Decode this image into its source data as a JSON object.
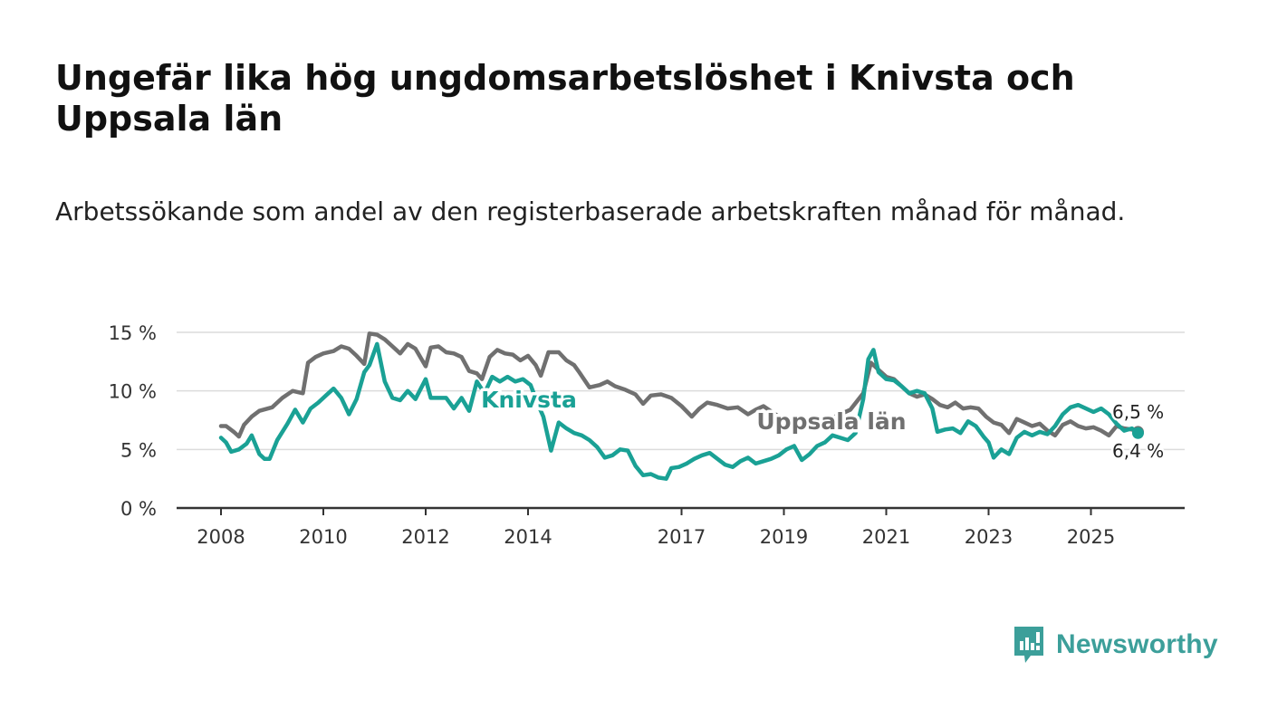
{
  "header": {
    "title": "Ungefär lika hög ungdomsarbetslöshet i Knivsta och Uppsala län",
    "subtitle": "Arbetssökande som andel av den registerbaserade arbetskraften månad för månad."
  },
  "brand": {
    "name": "Newsworthy",
    "icon": "newsworthy-logo-icon",
    "color": "#3c9f9a"
  },
  "chart_data": {
    "type": "line",
    "title": "Ungefär lika hög ungdomsarbetslöshet i Knivsta och Uppsala län",
    "subtitle": "Arbetssökande som andel av den registerbaserade arbetskraften månad för månad.",
    "xlabel": "",
    "ylabel": "",
    "xlim": [
      2008,
      2026.5
    ],
    "ylim": [
      0,
      15
    ],
    "grid": true,
    "x_ticks": [
      2008,
      2010,
      2012,
      2014,
      2017,
      2019,
      2021,
      2023,
      2025
    ],
    "y_ticks": [
      {
        "value": 0,
        "label": "0 %"
      },
      {
        "value": 5,
        "label": "5 %"
      },
      {
        "value": 10,
        "label": "10 %"
      },
      {
        "value": 15,
        "label": "15 %"
      }
    ],
    "series": [
      {
        "name": "Uppsala län",
        "color": "#707070",
        "end_label": "6,5 %",
        "points": [
          [
            2008.0,
            7.0
          ],
          [
            2008.1,
            7.0
          ],
          [
            2008.25,
            6.5
          ],
          [
            2008.35,
            6.1
          ],
          [
            2008.45,
            7.1
          ],
          [
            2008.6,
            7.8
          ],
          [
            2008.75,
            8.3
          ],
          [
            2009.0,
            8.6
          ],
          [
            2009.2,
            9.4
          ],
          [
            2009.4,
            10.0
          ],
          [
            2009.6,
            9.8
          ],
          [
            2009.7,
            12.4
          ],
          [
            2009.85,
            12.9
          ],
          [
            2010.0,
            13.2
          ],
          [
            2010.2,
            13.4
          ],
          [
            2010.35,
            13.8
          ],
          [
            2010.5,
            13.6
          ],
          [
            2010.65,
            13.0
          ],
          [
            2010.8,
            12.3
          ],
          [
            2010.9,
            14.9
          ],
          [
            2011.05,
            14.8
          ],
          [
            2011.2,
            14.4
          ],
          [
            2011.35,
            13.8
          ],
          [
            2011.5,
            13.2
          ],
          [
            2011.65,
            14.0
          ],
          [
            2011.8,
            13.6
          ],
          [
            2012.0,
            12.1
          ],
          [
            2012.1,
            13.7
          ],
          [
            2012.25,
            13.8
          ],
          [
            2012.4,
            13.3
          ],
          [
            2012.55,
            13.2
          ],
          [
            2012.7,
            12.9
          ],
          [
            2012.85,
            11.7
          ],
          [
            2013.0,
            11.5
          ],
          [
            2013.1,
            11.0
          ],
          [
            2013.25,
            12.9
          ],
          [
            2013.4,
            13.5
          ],
          [
            2013.55,
            13.2
          ],
          [
            2013.7,
            13.1
          ],
          [
            2013.85,
            12.6
          ],
          [
            2014.0,
            13.0
          ],
          [
            2014.15,
            12.2
          ],
          [
            2014.25,
            11.3
          ],
          [
            2014.4,
            13.3
          ],
          [
            2014.6,
            13.3
          ],
          [
            2014.75,
            12.6
          ],
          [
            2014.9,
            12.2
          ],
          [
            2015.0,
            11.6
          ],
          [
            2015.2,
            10.3
          ],
          [
            2015.4,
            10.5
          ],
          [
            2015.55,
            10.8
          ],
          [
            2015.7,
            10.4
          ],
          [
            2015.9,
            10.1
          ],
          [
            2016.1,
            9.7
          ],
          [
            2016.25,
            8.9
          ],
          [
            2016.4,
            9.6
          ],
          [
            2016.6,
            9.7
          ],
          [
            2016.8,
            9.4
          ],
          [
            2017.0,
            8.7
          ],
          [
            2017.2,
            7.8
          ],
          [
            2017.35,
            8.5
          ],
          [
            2017.5,
            9.0
          ],
          [
            2017.7,
            8.8
          ],
          [
            2017.9,
            8.5
          ],
          [
            2018.1,
            8.6
          ],
          [
            2018.3,
            8.0
          ],
          [
            2018.45,
            8.4
          ],
          [
            2018.6,
            8.7
          ],
          [
            2018.8,
            8.1
          ],
          [
            2019.0,
            7.5
          ],
          [
            2019.2,
            7.2
          ],
          [
            2019.4,
            7.0
          ],
          [
            2019.6,
            7.2
          ],
          [
            2019.8,
            7.5
          ],
          [
            2020.0,
            7.8
          ],
          [
            2020.3,
            8.4
          ],
          [
            2020.55,
            9.8
          ],
          [
            2020.7,
            12.4
          ],
          [
            2020.85,
            11.8
          ],
          [
            2021.0,
            11.2
          ],
          [
            2021.15,
            11.0
          ],
          [
            2021.3,
            10.4
          ],
          [
            2021.45,
            9.8
          ],
          [
            2021.6,
            9.5
          ],
          [
            2021.75,
            9.7
          ],
          [
            2021.9,
            9.3
          ],
          [
            2022.05,
            8.8
          ],
          [
            2022.2,
            8.6
          ],
          [
            2022.35,
            9.0
          ],
          [
            2022.5,
            8.5
          ],
          [
            2022.65,
            8.6
          ],
          [
            2022.8,
            8.5
          ],
          [
            2022.95,
            7.8
          ],
          [
            2023.1,
            7.3
          ],
          [
            2023.25,
            7.1
          ],
          [
            2023.4,
            6.4
          ],
          [
            2023.55,
            7.6
          ],
          [
            2023.7,
            7.3
          ],
          [
            2023.85,
            7.0
          ],
          [
            2024.0,
            7.2
          ],
          [
            2024.15,
            6.6
          ],
          [
            2024.3,
            6.2
          ],
          [
            2024.45,
            7.1
          ],
          [
            2024.6,
            7.4
          ],
          [
            2024.75,
            7.0
          ],
          [
            2024.9,
            6.8
          ],
          [
            2025.05,
            6.9
          ],
          [
            2025.2,
            6.6
          ],
          [
            2025.35,
            6.2
          ],
          [
            2025.5,
            7.0
          ],
          [
            2025.65,
            6.8
          ],
          [
            2025.8,
            6.7
          ],
          [
            2025.92,
            6.5
          ]
        ]
      },
      {
        "name": "Knivsta",
        "color": "#1aa195",
        "end_label": "6,4 %",
        "points": [
          [
            2008.0,
            6.0
          ],
          [
            2008.1,
            5.6
          ],
          [
            2008.2,
            4.8
          ],
          [
            2008.35,
            5.0
          ],
          [
            2008.5,
            5.5
          ],
          [
            2008.6,
            6.2
          ],
          [
            2008.75,
            4.6
          ],
          [
            2008.85,
            4.2
          ],
          [
            2008.95,
            4.2
          ],
          [
            2009.1,
            5.8
          ],
          [
            2009.3,
            7.2
          ],
          [
            2009.45,
            8.4
          ],
          [
            2009.6,
            7.3
          ],
          [
            2009.75,
            8.5
          ],
          [
            2009.9,
            9.0
          ],
          [
            2010.05,
            9.6
          ],
          [
            2010.2,
            10.2
          ],
          [
            2010.35,
            9.4
          ],
          [
            2010.5,
            8.0
          ],
          [
            2010.65,
            9.3
          ],
          [
            2010.8,
            11.6
          ],
          [
            2010.9,
            12.2
          ],
          [
            2011.05,
            14.0
          ],
          [
            2011.2,
            10.8
          ],
          [
            2011.35,
            9.4
          ],
          [
            2011.5,
            9.2
          ],
          [
            2011.65,
            10.0
          ],
          [
            2011.8,
            9.3
          ],
          [
            2012.0,
            11.0
          ],
          [
            2012.1,
            9.4
          ],
          [
            2012.25,
            9.4
          ],
          [
            2012.4,
            9.4
          ],
          [
            2012.55,
            8.5
          ],
          [
            2012.7,
            9.4
          ],
          [
            2012.85,
            8.3
          ],
          [
            2013.0,
            10.8
          ],
          [
            2013.15,
            9.8
          ],
          [
            2013.3,
            11.2
          ],
          [
            2013.45,
            10.8
          ],
          [
            2013.6,
            11.2
          ],
          [
            2013.75,
            10.8
          ],
          [
            2013.9,
            11.0
          ],
          [
            2014.05,
            10.5
          ],
          [
            2014.2,
            8.8
          ],
          [
            2014.3,
            7.8
          ],
          [
            2014.45,
            4.9
          ],
          [
            2014.6,
            7.3
          ],
          [
            2014.75,
            6.8
          ],
          [
            2014.9,
            6.4
          ],
          [
            2015.05,
            6.2
          ],
          [
            2015.2,
            5.8
          ],
          [
            2015.35,
            5.2
          ],
          [
            2015.5,
            4.3
          ],
          [
            2015.65,
            4.5
          ],
          [
            2015.8,
            5.0
          ],
          [
            2015.95,
            4.9
          ],
          [
            2016.1,
            3.6
          ],
          [
            2016.25,
            2.8
          ],
          [
            2016.4,
            2.9
          ],
          [
            2016.55,
            2.6
          ],
          [
            2016.7,
            2.5
          ],
          [
            2016.8,
            3.4
          ],
          [
            2016.95,
            3.5
          ],
          [
            2017.1,
            3.8
          ],
          [
            2017.25,
            4.2
          ],
          [
            2017.4,
            4.5
          ],
          [
            2017.55,
            4.7
          ],
          [
            2017.7,
            4.2
          ],
          [
            2017.85,
            3.7
          ],
          [
            2018.0,
            3.5
          ],
          [
            2018.15,
            4.0
          ],
          [
            2018.3,
            4.3
          ],
          [
            2018.45,
            3.8
          ],
          [
            2018.6,
            4.0
          ],
          [
            2018.75,
            4.2
          ],
          [
            2018.9,
            4.5
          ],
          [
            2019.05,
            5.0
          ],
          [
            2019.2,
            5.3
          ],
          [
            2019.35,
            4.1
          ],
          [
            2019.5,
            4.6
          ],
          [
            2019.65,
            5.3
          ],
          [
            2019.8,
            5.6
          ],
          [
            2019.95,
            6.2
          ],
          [
            2020.1,
            6.0
          ],
          [
            2020.25,
            5.8
          ],
          [
            2020.4,
            6.4
          ],
          [
            2020.55,
            9.3
          ],
          [
            2020.65,
            12.7
          ],
          [
            2020.75,
            13.5
          ],
          [
            2020.85,
            11.6
          ],
          [
            2021.0,
            11.0
          ],
          [
            2021.15,
            10.9
          ],
          [
            2021.3,
            10.4
          ],
          [
            2021.45,
            9.8
          ],
          [
            2021.6,
            10.0
          ],
          [
            2021.75,
            9.8
          ],
          [
            2021.9,
            8.5
          ],
          [
            2022.0,
            6.5
          ],
          [
            2022.15,
            6.7
          ],
          [
            2022.3,
            6.8
          ],
          [
            2022.45,
            6.4
          ],
          [
            2022.6,
            7.4
          ],
          [
            2022.75,
            7.0
          ],
          [
            2022.9,
            6.1
          ],
          [
            2023.0,
            5.6
          ],
          [
            2023.1,
            4.3
          ],
          [
            2023.25,
            5.0
          ],
          [
            2023.4,
            4.6
          ],
          [
            2023.55,
            6.0
          ],
          [
            2023.7,
            6.5
          ],
          [
            2023.85,
            6.2
          ],
          [
            2024.0,
            6.5
          ],
          [
            2024.15,
            6.3
          ],
          [
            2024.3,
            7.0
          ],
          [
            2024.45,
            8.0
          ],
          [
            2024.6,
            8.6
          ],
          [
            2024.75,
            8.8
          ],
          [
            2024.9,
            8.5
          ],
          [
            2025.05,
            8.2
          ],
          [
            2025.2,
            8.5
          ],
          [
            2025.35,
            8.0
          ],
          [
            2025.5,
            7.2
          ],
          [
            2025.65,
            6.6
          ],
          [
            2025.8,
            6.8
          ],
          [
            2025.92,
            6.4
          ]
        ]
      }
    ]
  }
}
